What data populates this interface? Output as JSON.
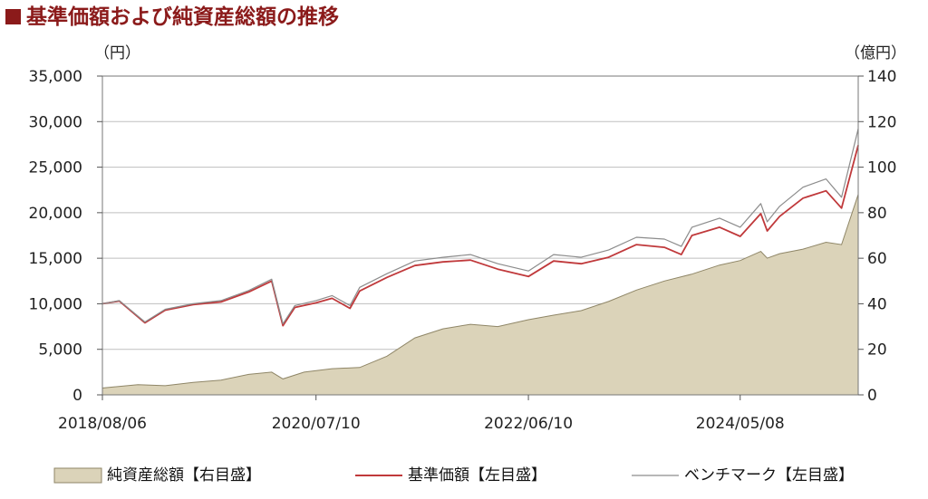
{
  "title": "基準価額および純資産総額の推移",
  "colors": {
    "title": "#8b1a1a",
    "nav_line": "#c0393b",
    "benchmark_line": "#8c8c8c",
    "area_fill": "#dbd3b9",
    "area_stroke": "#8f8667",
    "grid": "#bfbfbf"
  },
  "chart_data": {
    "type": "line",
    "title": "基準価額および純資産総額の推移",
    "y_left_unit": "（円）",
    "y_right_unit": "（億円）",
    "y_left_range": [
      0,
      35000
    ],
    "y_right_range": [
      0,
      140
    ],
    "y_left_ticks": [
      "0",
      "5,000",
      "10,000",
      "15,000",
      "20,000",
      "25,000",
      "30,000",
      "35,000"
    ],
    "y_right_ticks": [
      "0",
      "20",
      "40",
      "60",
      "80",
      "100",
      "120",
      "140"
    ],
    "x_range": [
      "2018-08-06",
      "2025-06-01"
    ],
    "x_ticks": [
      {
        "label": "2018/08/06",
        "date": "2018-08-06"
      },
      {
        "label": "2020/07/10",
        "date": "2020-07-10"
      },
      {
        "label": "2022/06/10",
        "date": "2022-06-10"
      },
      {
        "label": "2024/05/08",
        "date": "2024-05-08"
      }
    ],
    "grid": "horizontal",
    "legend_position": "bottom",
    "series": [
      {
        "name": "純資産総額【右目盛】",
        "type": "area",
        "axis": "right",
        "x": [
          "2018-08-06",
          "2018-12-01",
          "2019-03-01",
          "2019-06-01",
          "2019-09-01",
          "2019-12-01",
          "2020-02-15",
          "2020-03-23",
          "2020-06-01",
          "2020-09-01",
          "2020-12-01",
          "2021-03-01",
          "2021-06-01",
          "2021-09-01",
          "2021-12-01",
          "2022-03-01",
          "2022-06-10",
          "2022-09-01",
          "2022-12-01",
          "2023-03-01",
          "2023-06-01",
          "2023-09-01",
          "2023-12-01",
          "2024-03-01",
          "2024-05-08",
          "2024-07-15",
          "2024-08-05",
          "2024-09-15",
          "2024-12-01",
          "2025-02-15",
          "2025-04-07",
          "2025-06-01"
        ],
        "y": [
          3,
          4.5,
          4,
          5.5,
          6.5,
          9,
          10,
          7,
          10,
          11.5,
          12,
          17,
          25,
          29,
          31,
          30,
          33,
          35,
          37,
          41,
          46,
          50,
          53,
          57,
          59,
          63,
          60,
          62,
          64,
          67,
          66,
          88
        ]
      },
      {
        "name": "基準価額【左目盛】",
        "type": "line",
        "axis": "left",
        "x": [
          "2018-08-06",
          "2018-10-01",
          "2018-12-24",
          "2019-03-01",
          "2019-06-01",
          "2019-09-01",
          "2019-12-01",
          "2020-02-15",
          "2020-03-23",
          "2020-05-01",
          "2020-07-10",
          "2020-09-01",
          "2020-10-30",
          "2020-12-01",
          "2021-03-01",
          "2021-06-01",
          "2021-09-01",
          "2021-12-01",
          "2022-03-01",
          "2022-06-10",
          "2022-09-01",
          "2022-12-01",
          "2023-03-01",
          "2023-06-01",
          "2023-09-01",
          "2023-10-27",
          "2023-12-01",
          "2024-03-01",
          "2024-05-08",
          "2024-07-15",
          "2024-08-05",
          "2024-09-15",
          "2024-12-01",
          "2025-02-15",
          "2025-04-07",
          "2025-06-01"
        ],
        "y": [
          10000,
          10300,
          7900,
          9300,
          9900,
          10200,
          11300,
          12500,
          7600,
          9600,
          10100,
          10600,
          9500,
          11400,
          12900,
          14200,
          14600,
          14800,
          13800,
          13000,
          14700,
          14400,
          15100,
          16500,
          16200,
          15400,
          17500,
          18400,
          17400,
          19900,
          18000,
          19600,
          21600,
          22400,
          20500,
          27400
        ]
      },
      {
        "name": "ベンチマーク【左目盛】",
        "type": "line",
        "axis": "left",
        "x": [
          "2018-08-06",
          "2018-10-01",
          "2018-12-24",
          "2019-03-01",
          "2019-06-01",
          "2019-09-01",
          "2019-12-01",
          "2020-02-15",
          "2020-03-23",
          "2020-05-01",
          "2020-07-10",
          "2020-09-01",
          "2020-10-30",
          "2020-12-01",
          "2021-03-01",
          "2021-06-01",
          "2021-09-01",
          "2021-12-01",
          "2022-03-01",
          "2022-06-10",
          "2022-09-01",
          "2022-12-01",
          "2023-03-01",
          "2023-06-01",
          "2023-09-01",
          "2023-10-27",
          "2023-12-01",
          "2024-03-01",
          "2024-05-08",
          "2024-07-15",
          "2024-08-05",
          "2024-09-15",
          "2024-12-01",
          "2025-02-15",
          "2025-04-07",
          "2025-06-01"
        ],
        "y": [
          10000,
          10350,
          8000,
          9400,
          10000,
          10350,
          11450,
          12700,
          7800,
          9800,
          10350,
          10900,
          9800,
          11800,
          13300,
          14700,
          15100,
          15400,
          14400,
          13600,
          15400,
          15100,
          15900,
          17300,
          17100,
          16300,
          18400,
          19400,
          18400,
          21000,
          19000,
          20700,
          22800,
          23700,
          21700,
          29200
        ]
      }
    ]
  }
}
